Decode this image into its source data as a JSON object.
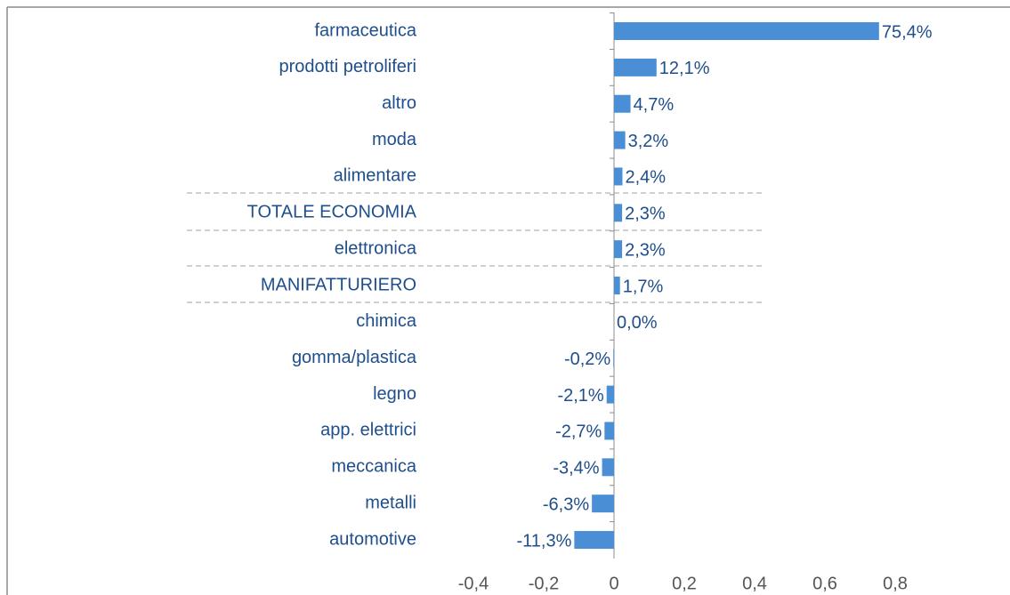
{
  "chart_data": {
    "type": "bar",
    "orientation": "horizontal",
    "categories": [
      "farmaceutica",
      "prodotti petroliferi",
      "altro",
      "moda",
      "alimentare",
      "TOTALE ECONOMIA",
      "elettronica",
      "MANIFATTURIERO",
      "chimica",
      "gomma/plastica",
      "legno",
      "app. elettrici",
      "meccanica",
      "metalli",
      "automotive"
    ],
    "values": [
      0.754,
      0.121,
      0.047,
      0.032,
      0.024,
      0.023,
      0.023,
      0.017,
      0.0,
      -0.002,
      -0.021,
      -0.027,
      -0.034,
      -0.063,
      -0.113
    ],
    "value_labels": [
      "75,4%",
      "12,1%",
      "4,7%",
      "3,2%",
      "2,4%",
      "2,3%",
      "2,3%",
      "1,7%",
      "0,0%",
      "-0,2%",
      "-2,1%",
      "-2,7%",
      "-3,4%",
      "-6,3%",
      "-11,3%"
    ],
    "color": "#4a8fd6",
    "xlim": [
      -0.4,
      0.8
    ],
    "xticks": [
      {
        "value": -0.4,
        "label": "-0,4"
      },
      {
        "value": -0.2,
        "label": "-0,2"
      },
      0,
      {
        "value": 0.2,
        "label": "0,2"
      },
      {
        "value": 0.4,
        "label": "0,4"
      },
      {
        "value": 0.6,
        "label": "0,6"
      },
      {
        "value": 0.8,
        "label": "0,8"
      }
    ]
  }
}
